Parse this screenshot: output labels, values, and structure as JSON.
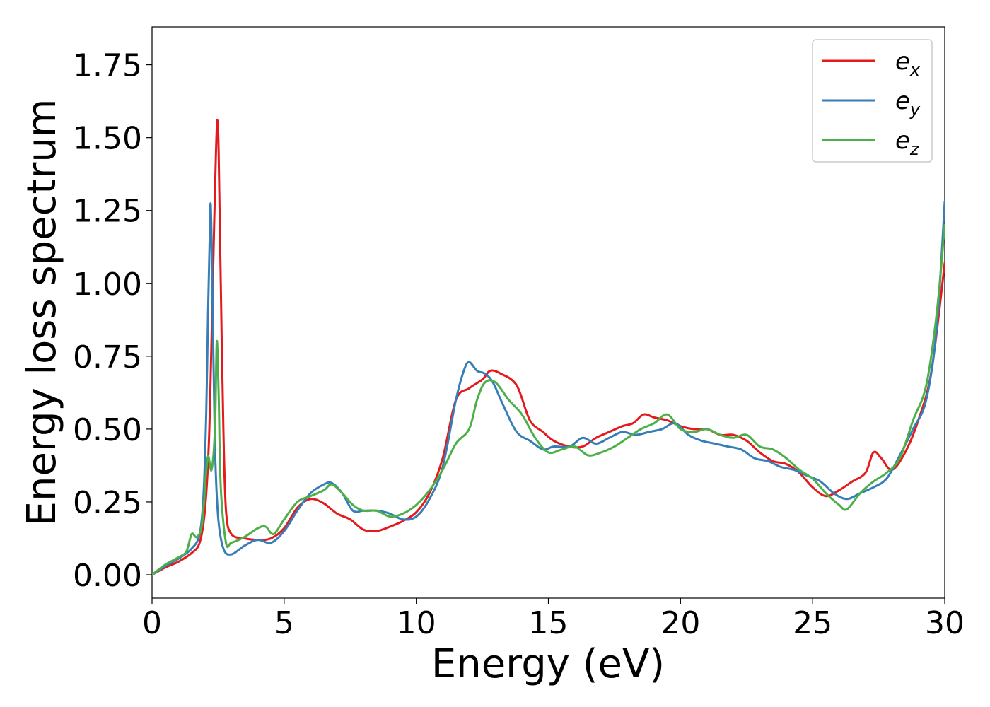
{
  "chart_data": {
    "type": "line",
    "title": "",
    "xlabel": "Energy (eV)",
    "ylabel": "Energy loss spectrum",
    "xlim": [
      0,
      30
    ],
    "ylim": [
      -0.08,
      1.88
    ],
    "xticks": [
      0,
      5,
      10,
      15,
      20,
      25,
      30
    ],
    "xtick_labels": [
      "0",
      "5",
      "10",
      "15",
      "20",
      "25",
      "30"
    ],
    "yticks": [
      0.0,
      0.25,
      0.5,
      0.75,
      1.0,
      1.25,
      1.5,
      1.75
    ],
    "ytick_labels": [
      "0.00",
      "0.25",
      "0.50",
      "0.75",
      "1.00",
      "1.25",
      "1.50",
      "1.75"
    ],
    "grid": false,
    "legend_position": "top-right",
    "series": [
      {
        "name": "e_x",
        "label_base": "e",
        "label_sub": "x",
        "color": "#e41a1c",
        "points": [
          [
            0,
            0
          ],
          [
            0.5,
            0.025
          ],
          [
            1,
            0.045
          ],
          [
            1.5,
            0.075
          ],
          [
            1.8,
            0.11
          ],
          [
            2.0,
            0.22
          ],
          [
            2.15,
            0.45
          ],
          [
            2.25,
            0.8
          ],
          [
            2.35,
            1.2
          ],
          [
            2.42,
            1.45
          ],
          [
            2.47,
            1.56
          ],
          [
            2.52,
            1.45
          ],
          [
            2.6,
            1.0
          ],
          [
            2.7,
            0.5
          ],
          [
            2.8,
            0.22
          ],
          [
            3.0,
            0.14
          ],
          [
            3.5,
            0.125
          ],
          [
            4.0,
            0.12
          ],
          [
            4.5,
            0.125
          ],
          [
            5.0,
            0.16
          ],
          [
            5.5,
            0.23
          ],
          [
            6.0,
            0.26
          ],
          [
            6.5,
            0.245
          ],
          [
            7.0,
            0.21
          ],
          [
            7.5,
            0.19
          ],
          [
            8.0,
            0.155
          ],
          [
            8.5,
            0.15
          ],
          [
            9.0,
            0.165
          ],
          [
            9.5,
            0.185
          ],
          [
            10.0,
            0.215
          ],
          [
            10.5,
            0.28
          ],
          [
            11.0,
            0.4
          ],
          [
            11.5,
            0.6
          ],
          [
            12.0,
            0.64
          ],
          [
            12.5,
            0.67
          ],
          [
            12.8,
            0.7
          ],
          [
            13.2,
            0.69
          ],
          [
            13.8,
            0.65
          ],
          [
            14.3,
            0.53
          ],
          [
            14.8,
            0.49
          ],
          [
            15.2,
            0.46
          ],
          [
            15.8,
            0.44
          ],
          [
            16.3,
            0.44
          ],
          [
            16.8,
            0.47
          ],
          [
            17.3,
            0.49
          ],
          [
            17.8,
            0.51
          ],
          [
            18.2,
            0.52
          ],
          [
            18.6,
            0.55
          ],
          [
            19.0,
            0.54
          ],
          [
            19.5,
            0.53
          ],
          [
            20.0,
            0.51
          ],
          [
            20.5,
            0.5
          ],
          [
            21.0,
            0.5
          ],
          [
            21.5,
            0.48
          ],
          [
            22.0,
            0.48
          ],
          [
            22.5,
            0.46
          ],
          [
            23.0,
            0.42
          ],
          [
            23.5,
            0.39
          ],
          [
            24.0,
            0.38
          ],
          [
            24.5,
            0.35
          ],
          [
            25.0,
            0.3
          ],
          [
            25.5,
            0.27
          ],
          [
            26.0,
            0.29
          ],
          [
            26.5,
            0.32
          ],
          [
            27.0,
            0.35
          ],
          [
            27.3,
            0.42
          ],
          [
            27.6,
            0.4
          ],
          [
            28.0,
            0.36
          ],
          [
            28.5,
            0.42
          ],
          [
            29.0,
            0.53
          ],
          [
            29.5,
            0.7
          ],
          [
            30.0,
            1.07
          ]
        ]
      },
      {
        "name": "e_y",
        "label_base": "e",
        "label_sub": "y",
        "color": "#377eb8",
        "points": [
          [
            0,
            0
          ],
          [
            0.5,
            0.03
          ],
          [
            1,
            0.055
          ],
          [
            1.5,
            0.09
          ],
          [
            1.8,
            0.14
          ],
          [
            1.95,
            0.28
          ],
          [
            2.05,
            0.55
          ],
          [
            2.12,
            0.9
          ],
          [
            2.18,
            1.15
          ],
          [
            2.22,
            1.27
          ],
          [
            2.28,
            1.0
          ],
          [
            2.38,
            0.45
          ],
          [
            2.5,
            0.2
          ],
          [
            2.7,
            0.09
          ],
          [
            3.0,
            0.07
          ],
          [
            3.5,
            0.1
          ],
          [
            4.0,
            0.12
          ],
          [
            4.5,
            0.11
          ],
          [
            5.0,
            0.15
          ],
          [
            5.5,
            0.22
          ],
          [
            6.0,
            0.28
          ],
          [
            6.5,
            0.31
          ],
          [
            6.8,
            0.315
          ],
          [
            7.2,
            0.28
          ],
          [
            7.6,
            0.22
          ],
          [
            8.0,
            0.22
          ],
          [
            8.5,
            0.22
          ],
          [
            9.0,
            0.21
          ],
          [
            9.5,
            0.19
          ],
          [
            10.0,
            0.2
          ],
          [
            10.5,
            0.26
          ],
          [
            11.0,
            0.37
          ],
          [
            11.5,
            0.6
          ],
          [
            11.8,
            0.7
          ],
          [
            12.0,
            0.73
          ],
          [
            12.3,
            0.7
          ],
          [
            12.6,
            0.69
          ],
          [
            12.9,
            0.66
          ],
          [
            13.3,
            0.58
          ],
          [
            13.8,
            0.49
          ],
          [
            14.3,
            0.46
          ],
          [
            14.8,
            0.43
          ],
          [
            15.2,
            0.44
          ],
          [
            15.8,
            0.44
          ],
          [
            16.3,
            0.47
          ],
          [
            16.8,
            0.45
          ],
          [
            17.3,
            0.47
          ],
          [
            17.8,
            0.49
          ],
          [
            18.3,
            0.48
          ],
          [
            18.8,
            0.49
          ],
          [
            19.3,
            0.5
          ],
          [
            19.8,
            0.52
          ],
          [
            20.3,
            0.48
          ],
          [
            20.8,
            0.46
          ],
          [
            21.3,
            0.45
          ],
          [
            21.8,
            0.44
          ],
          [
            22.3,
            0.43
          ],
          [
            22.8,
            0.4
          ],
          [
            23.3,
            0.39
          ],
          [
            23.8,
            0.37
          ],
          [
            24.3,
            0.36
          ],
          [
            24.8,
            0.34
          ],
          [
            25.3,
            0.32
          ],
          [
            25.8,
            0.28
          ],
          [
            26.3,
            0.26
          ],
          [
            26.8,
            0.28
          ],
          [
            27.3,
            0.3
          ],
          [
            27.8,
            0.33
          ],
          [
            28.3,
            0.41
          ],
          [
            28.8,
            0.5
          ],
          [
            29.3,
            0.6
          ],
          [
            29.7,
            0.85
          ],
          [
            30.0,
            1.28
          ]
        ]
      },
      {
        "name": "e_z",
        "label_base": "e",
        "label_sub": "z",
        "color": "#4daf4a",
        "points": [
          [
            0,
            0
          ],
          [
            0.5,
            0.035
          ],
          [
            1,
            0.06
          ],
          [
            1.3,
            0.08
          ],
          [
            1.5,
            0.14
          ],
          [
            1.7,
            0.13
          ],
          [
            1.9,
            0.18
          ],
          [
            2.1,
            0.4
          ],
          [
            2.25,
            0.36
          ],
          [
            2.38,
            0.5
          ],
          [
            2.45,
            0.8
          ],
          [
            2.52,
            0.62
          ],
          [
            2.6,
            0.3
          ],
          [
            2.8,
            0.11
          ],
          [
            3.0,
            0.11
          ],
          [
            3.5,
            0.13
          ],
          [
            4.0,
            0.16
          ],
          [
            4.3,
            0.165
          ],
          [
            4.6,
            0.14
          ],
          [
            5.0,
            0.19
          ],
          [
            5.5,
            0.25
          ],
          [
            6.0,
            0.27
          ],
          [
            6.5,
            0.29
          ],
          [
            6.8,
            0.31
          ],
          [
            7.2,
            0.28
          ],
          [
            7.6,
            0.24
          ],
          [
            8.0,
            0.22
          ],
          [
            8.5,
            0.22
          ],
          [
            9.0,
            0.2
          ],
          [
            9.5,
            0.21
          ],
          [
            10.0,
            0.24
          ],
          [
            10.5,
            0.29
          ],
          [
            11.0,
            0.36
          ],
          [
            11.5,
            0.45
          ],
          [
            12.0,
            0.5
          ],
          [
            12.3,
            0.6
          ],
          [
            12.6,
            0.66
          ],
          [
            13.0,
            0.66
          ],
          [
            13.5,
            0.6
          ],
          [
            14.0,
            0.55
          ],
          [
            14.5,
            0.47
          ],
          [
            15.0,
            0.42
          ],
          [
            15.5,
            0.43
          ],
          [
            16.0,
            0.44
          ],
          [
            16.5,
            0.41
          ],
          [
            17.0,
            0.42
          ],
          [
            17.5,
            0.44
          ],
          [
            18.0,
            0.47
          ],
          [
            18.5,
            0.5
          ],
          [
            19.0,
            0.52
          ],
          [
            19.5,
            0.55
          ],
          [
            20.0,
            0.5
          ],
          [
            20.5,
            0.49
          ],
          [
            21.0,
            0.5
          ],
          [
            21.5,
            0.48
          ],
          [
            22.0,
            0.47
          ],
          [
            22.5,
            0.48
          ],
          [
            23.0,
            0.44
          ],
          [
            23.5,
            0.43
          ],
          [
            24.0,
            0.4
          ],
          [
            24.5,
            0.36
          ],
          [
            25.0,
            0.33
          ],
          [
            25.5,
            0.28
          ],
          [
            26.0,
            0.24
          ],
          [
            26.3,
            0.225
          ],
          [
            26.8,
            0.28
          ],
          [
            27.3,
            0.32
          ],
          [
            27.8,
            0.35
          ],
          [
            28.3,
            0.4
          ],
          [
            28.8,
            0.53
          ],
          [
            29.3,
            0.65
          ],
          [
            29.7,
            0.9
          ],
          [
            30.0,
            1.2
          ]
        ]
      }
    ]
  }
}
